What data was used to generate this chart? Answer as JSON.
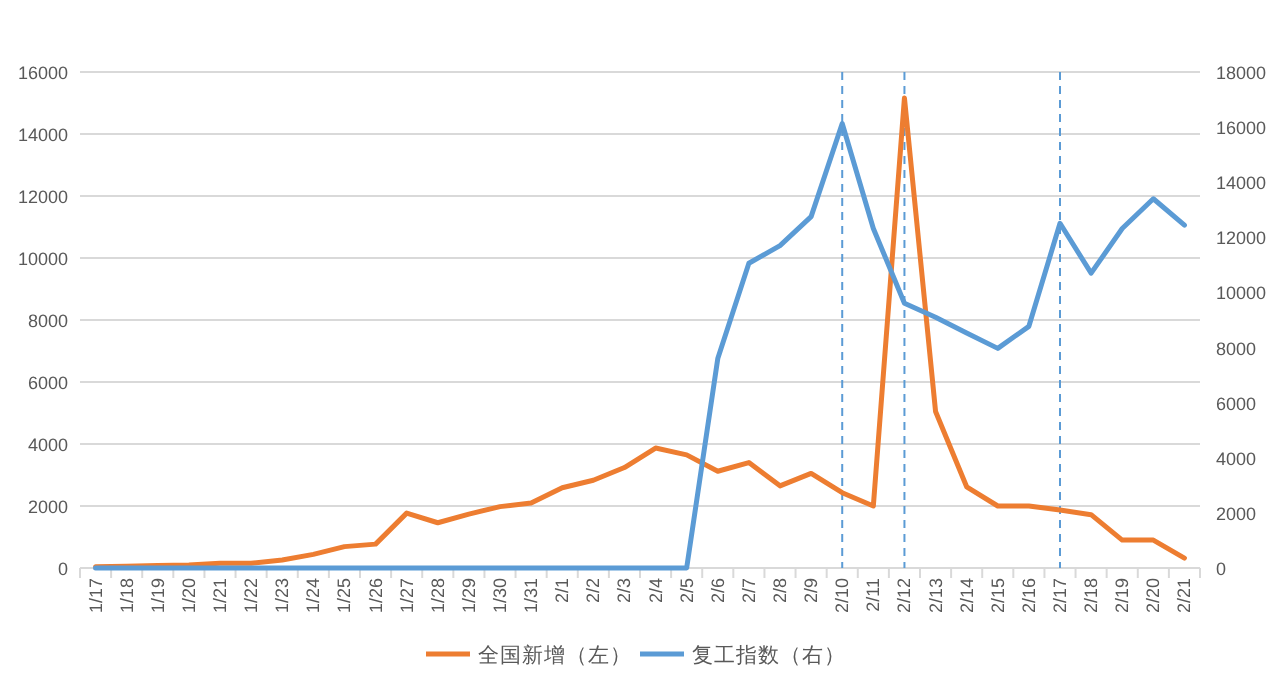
{
  "chart_data": {
    "type": "line",
    "categories": [
      "1/17",
      "1/18",
      "1/19",
      "1/20",
      "1/21",
      "1/22",
      "1/23",
      "1/24",
      "1/25",
      "1/26",
      "1/27",
      "1/28",
      "1/29",
      "1/30",
      "1/31",
      "2/1",
      "2/2",
      "2/3",
      "2/4",
      "2/5",
      "2/6",
      "2/7",
      "2/8",
      "2/9",
      "2/10",
      "2/11",
      "2/12",
      "2/13",
      "2/14",
      "2/15",
      "2/16",
      "2/17",
      "2/18",
      "2/19",
      "2/20",
      "2/21"
    ],
    "series": [
      {
        "name": "全国新增（左）",
        "color": "#ed7d31",
        "values": [
          40,
          60,
          80,
          100,
          150,
          150,
          260,
          440,
          690,
          770,
          1770,
          1460,
          1740,
          1980,
          2100,
          2590,
          2830,
          3240,
          3870,
          3650,
          3120,
          3400,
          2650,
          3050,
          2430,
          2000,
          15160,
          5050,
          2620,
          2000,
          2000,
          1870,
          1720,
          900,
          900,
          320
        ]
      },
      {
        "name": "复工指数（右）",
        "color": "#5b9bd5",
        "axis": "y2",
        "values": [
          0,
          0,
          0,
          0,
          0,
          0,
          0,
          0,
          0,
          0,
          0,
          0,
          0,
          0,
          0,
          0,
          0,
          0,
          0,
          0,
          7600,
          11060,
          11700,
          12750,
          16130,
          12320,
          9610,
          9100,
          8530,
          7970,
          8770,
          12510,
          10700,
          12320,
          13400,
          12440
        ]
      }
    ],
    "ylim": [
      0,
      16000
    ],
    "yticks": [
      0,
      2000,
      4000,
      6000,
      8000,
      10000,
      12000,
      14000,
      16000
    ],
    "y2lim": [
      0,
      18000
    ],
    "y2ticks": [
      0,
      2000,
      4000,
      6000,
      8000,
      10000,
      12000,
      14000,
      16000,
      18000
    ],
    "ref_lines": [
      {
        "axis": "x",
        "value": "2/10",
        "color": "#5b9bd5",
        "line_style": "dashed"
      },
      {
        "axis": "x",
        "value": "2/12",
        "color": "#5b9bd5",
        "line_style": "dashed"
      },
      {
        "axis": "x",
        "value": "2/17",
        "color": "#5b9bd5",
        "line_style": "dashed"
      }
    ],
    "grid": "y",
    "legend": "bottom",
    "line_style": "solid",
    "marker": "none"
  }
}
